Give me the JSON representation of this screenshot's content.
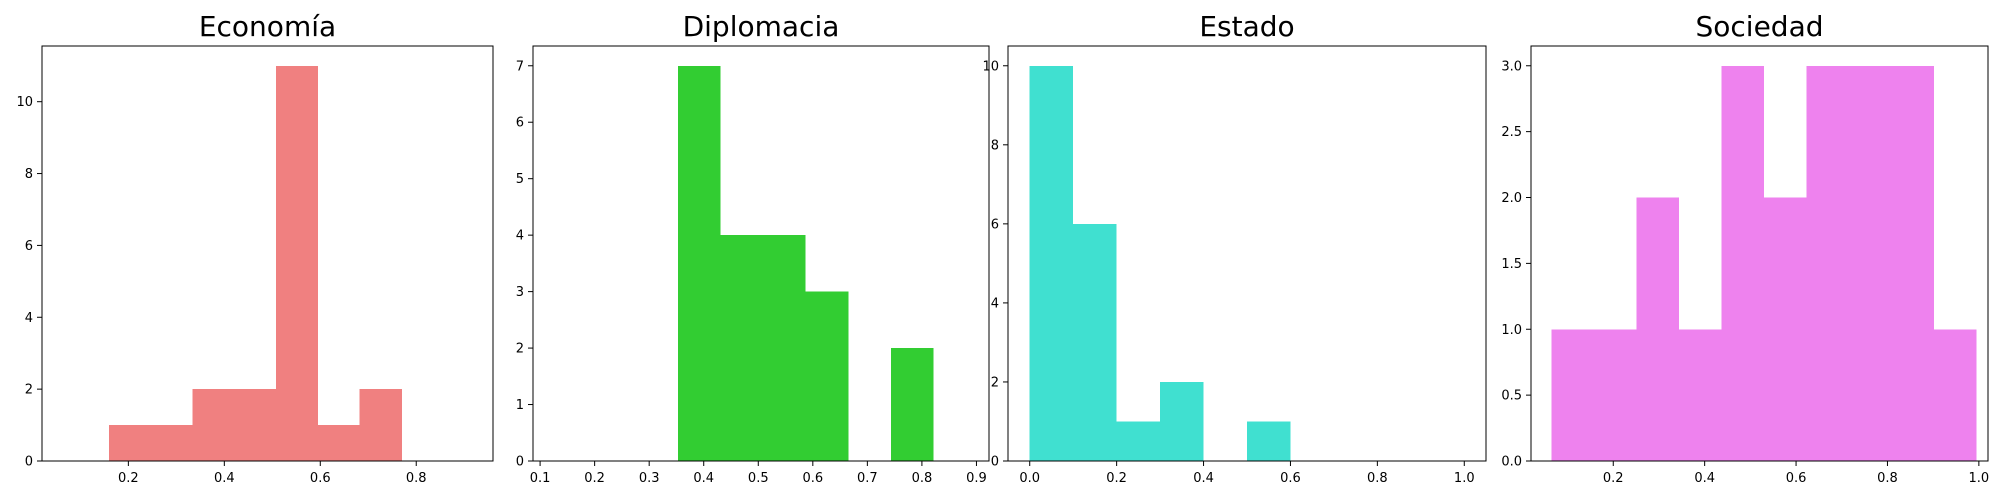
{
  "chart_data": [
    {
      "type": "bar",
      "title": "Economía",
      "color": "#f08080",
      "xlim": [
        0.02,
        0.96
      ],
      "ylim": [
        0,
        11.55
      ],
      "xticks": [
        "0.2",
        "0.4",
        "0.6",
        "0.8"
      ],
      "yticks": [
        "0",
        "2",
        "4",
        "6",
        "8",
        "10"
      ],
      "bins": [
        {
          "x0": 0.16,
          "x1": 0.247,
          "value": 1
        },
        {
          "x0": 0.247,
          "x1": 0.334,
          "value": 1
        },
        {
          "x0": 0.334,
          "x1": 0.421,
          "value": 2
        },
        {
          "x0": 0.421,
          "x1": 0.508,
          "value": 2
        },
        {
          "x0": 0.508,
          "x1": 0.595,
          "value": 11
        },
        {
          "x0": 0.595,
          "x1": 0.682,
          "value": 1
        },
        {
          "x0": 0.682,
          "x1": 0.77,
          "value": 2
        }
      ]
    },
    {
      "type": "bar",
      "title": "Diplomacia",
      "color": "#32cd32",
      "xlim": [
        0.087,
        0.923
      ],
      "ylim": [
        0,
        7.35
      ],
      "xticks": [
        "0.1",
        "0.2",
        "0.3",
        "0.4",
        "0.5",
        "0.6",
        "0.7",
        "0.8",
        "0.9"
      ],
      "yticks": [
        "0",
        "1",
        "2",
        "3",
        "4",
        "5",
        "6",
        "7"
      ],
      "bins": [
        {
          "x0": 0.353,
          "x1": 0.431,
          "value": 7
        },
        {
          "x0": 0.431,
          "x1": 0.509,
          "value": 4
        },
        {
          "x0": 0.509,
          "x1": 0.587,
          "value": 4
        },
        {
          "x0": 0.587,
          "x1": 0.665,
          "value": 3
        },
        {
          "x0": 0.665,
          "x1": 0.743,
          "value": 0
        },
        {
          "x0": 0.743,
          "x1": 0.821,
          "value": 2
        }
      ]
    },
    {
      "type": "bar",
      "title": "Estado",
      "color": "#40e0d0",
      "xlim": [
        -0.05,
        1.05
      ],
      "ylim": [
        0,
        10.5
      ],
      "xticks": [
        "0.0",
        "0.2",
        "0.4",
        "0.6",
        "0.8",
        "1.0"
      ],
      "yticks": [
        "0",
        "2",
        "4",
        "6",
        "8",
        "10"
      ],
      "bins": [
        {
          "x0": 0.0,
          "x1": 0.1,
          "value": 10
        },
        {
          "x0": 0.1,
          "x1": 0.2,
          "value": 6
        },
        {
          "x0": 0.2,
          "x1": 0.3,
          "value": 1
        },
        {
          "x0": 0.3,
          "x1": 0.4,
          "value": 2
        },
        {
          "x0": 0.4,
          "x1": 0.5,
          "value": 0
        },
        {
          "x0": 0.5,
          "x1": 0.6,
          "value": 1
        }
      ]
    },
    {
      "type": "bar",
      "title": "Sociedad",
      "color": "#ee82ee",
      "xlim": [
        0.02,
        1.02
      ],
      "ylim": [
        0,
        3.15
      ],
      "xticks": [
        "0.2",
        "0.4",
        "0.6",
        "0.8",
        "1.0"
      ],
      "yticks": [
        "0.0",
        "0.5",
        "1.0",
        "1.5",
        "2.0",
        "2.5",
        "3.0"
      ],
      "bins": [
        {
          "x0": 0.065,
          "x1": 0.158,
          "value": 1
        },
        {
          "x0": 0.158,
          "x1": 0.251,
          "value": 1
        },
        {
          "x0": 0.251,
          "x1": 0.344,
          "value": 2
        },
        {
          "x0": 0.344,
          "x1": 0.437,
          "value": 1
        },
        {
          "x0": 0.437,
          "x1": 0.53,
          "value": 3
        },
        {
          "x0": 0.53,
          "x1": 0.623,
          "value": 2
        },
        {
          "x0": 0.623,
          "x1": 0.716,
          "value": 3
        },
        {
          "x0": 0.716,
          "x1": 0.809,
          "value": 3
        },
        {
          "x0": 0.809,
          "x1": 0.902,
          "value": 3
        },
        {
          "x0": 0.902,
          "x1": 0.995,
          "value": 1
        }
      ]
    }
  ]
}
